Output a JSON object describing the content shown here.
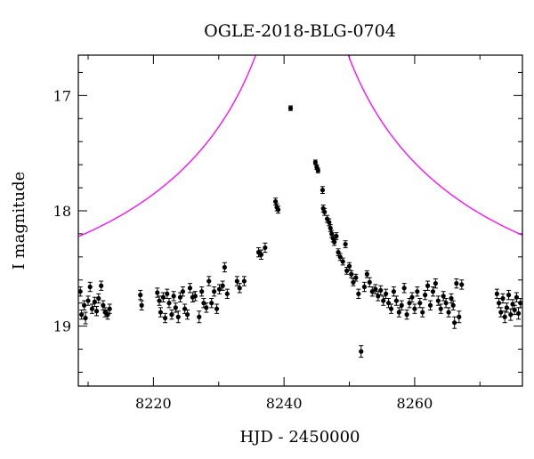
{
  "chart_data": {
    "type": "scatter",
    "title": "OGLE-2018-BLG-0704",
    "xlabel": "HJD - 2450000",
    "ylabel": "I magnitude",
    "xlim": [
      8208.5,
      8276.5
    ],
    "ylim": [
      19.52,
      16.65
    ],
    "y_inverted": true,
    "x_major_ticks": [
      8220,
      8240,
      8260
    ],
    "x_minor_ticks": [
      8210,
      8230,
      8250,
      8270
    ],
    "y_major_ticks": [
      17,
      18,
      19
    ],
    "y_minor_ticks": [
      16.8,
      17.2,
      17.4,
      17.6,
      17.8,
      18.2,
      18.4,
      18.6,
      18.8,
      19.2,
      19.4
    ],
    "grid": false,
    "legend": "none",
    "colors": {
      "points": "#000000",
      "model": "#ff00ff",
      "axes": "#000000"
    },
    "model": {
      "name": "",
      "description": "point-lens magnification curve",
      "baseline_mag": 18.88,
      "t0": 8242.75,
      "u0": 0.005,
      "tE": 55
    },
    "series": [
      {
        "values": [
          {
            "x": 8208.8,
            "y": 18.7,
            "e": 0.04
          },
          {
            "x": 8209.0,
            "y": 18.9,
            "e": 0.04
          },
          {
            "x": 8209.4,
            "y": 18.82,
            "e": 0.04
          },
          {
            "x": 8209.6,
            "y": 18.93,
            "e": 0.05
          },
          {
            "x": 8210.0,
            "y": 18.78,
            "e": 0.04
          },
          {
            "x": 8210.3,
            "y": 18.66,
            "e": 0.04
          },
          {
            "x": 8210.6,
            "y": 18.85,
            "e": 0.04
          },
          {
            "x": 8211.0,
            "y": 18.79,
            "e": 0.04
          },
          {
            "x": 8211.3,
            "y": 18.87,
            "e": 0.04
          },
          {
            "x": 8211.6,
            "y": 18.76,
            "e": 0.04
          },
          {
            "x": 8212.0,
            "y": 18.65,
            "e": 0.04
          },
          {
            "x": 8212.3,
            "y": 18.82,
            "e": 0.04
          },
          {
            "x": 8212.6,
            "y": 18.88,
            "e": 0.04
          },
          {
            "x": 8213.0,
            "y": 18.9,
            "e": 0.04
          },
          {
            "x": 8213.3,
            "y": 18.85,
            "e": 0.04
          },
          {
            "x": 8218.0,
            "y": 18.73,
            "e": 0.04
          },
          {
            "x": 8218.2,
            "y": 18.82,
            "e": 0.04
          },
          {
            "x": 8220.6,
            "y": 18.71,
            "e": 0.04
          },
          {
            "x": 8220.9,
            "y": 18.78,
            "e": 0.04
          },
          {
            "x": 8221.1,
            "y": 18.88,
            "e": 0.04
          },
          {
            "x": 8221.5,
            "y": 18.75,
            "e": 0.04
          },
          {
            "x": 8221.8,
            "y": 18.93,
            "e": 0.04
          },
          {
            "x": 8222.1,
            "y": 18.72,
            "e": 0.04
          },
          {
            "x": 8222.4,
            "y": 18.8,
            "e": 0.04
          },
          {
            "x": 8222.8,
            "y": 18.9,
            "e": 0.04
          },
          {
            "x": 8223.1,
            "y": 18.74,
            "e": 0.04
          },
          {
            "x": 8223.4,
            "y": 18.84,
            "e": 0.04
          },
          {
            "x": 8223.8,
            "y": 18.92,
            "e": 0.05
          },
          {
            "x": 8224.1,
            "y": 18.75,
            "e": 0.04
          },
          {
            "x": 8224.5,
            "y": 18.7,
            "e": 0.04
          },
          {
            "x": 8224.8,
            "y": 18.85,
            "e": 0.04
          },
          {
            "x": 8225.2,
            "y": 18.9,
            "e": 0.04
          },
          {
            "x": 8225.6,
            "y": 18.67,
            "e": 0.04
          },
          {
            "x": 8226.0,
            "y": 18.75,
            "e": 0.04
          },
          {
            "x": 8226.4,
            "y": 18.74,
            "e": 0.04
          },
          {
            "x": 8227.0,
            "y": 18.92,
            "e": 0.05
          },
          {
            "x": 8227.4,
            "y": 18.7,
            "e": 0.04
          },
          {
            "x": 8227.7,
            "y": 18.8,
            "e": 0.04
          },
          {
            "x": 8228.1,
            "y": 18.84,
            "e": 0.04
          },
          {
            "x": 8228.5,
            "y": 18.61,
            "e": 0.04
          },
          {
            "x": 8228.9,
            "y": 18.8,
            "e": 0.04
          },
          {
            "x": 8229.3,
            "y": 18.7,
            "e": 0.04
          },
          {
            "x": 8229.7,
            "y": 18.85,
            "e": 0.04
          },
          {
            "x": 8230.1,
            "y": 18.68,
            "e": 0.04
          },
          {
            "x": 8230.6,
            "y": 18.65,
            "e": 0.04
          },
          {
            "x": 8230.9,
            "y": 18.49,
            "e": 0.04
          },
          {
            "x": 8231.3,
            "y": 18.72,
            "e": 0.04
          },
          {
            "x": 8232.8,
            "y": 18.61,
            "e": 0.04
          },
          {
            "x": 8233.2,
            "y": 18.67,
            "e": 0.04
          },
          {
            "x": 8233.9,
            "y": 18.61,
            "e": 0.04
          },
          {
            "x": 8236.1,
            "y": 18.36,
            "e": 0.04
          },
          {
            "x": 8236.5,
            "y": 18.38,
            "e": 0.04
          },
          {
            "x": 8237.1,
            "y": 18.32,
            "e": 0.04
          },
          {
            "x": 8238.7,
            "y": 17.92,
            "e": 0.03
          },
          {
            "x": 8238.9,
            "y": 17.97,
            "e": 0.03
          },
          {
            "x": 8239.1,
            "y": 17.99,
            "e": 0.03
          },
          {
            "x": 8241.0,
            "y": 17.11,
            "e": 0.02
          },
          {
            "x": 8244.8,
            "y": 17.58,
            "e": 0.02
          },
          {
            "x": 8245.0,
            "y": 17.62,
            "e": 0.02
          },
          {
            "x": 8245.2,
            "y": 17.65,
            "e": 0.02
          },
          {
            "x": 8245.9,
            "y": 17.82,
            "e": 0.03
          },
          {
            "x": 8246.0,
            "y": 17.98,
            "e": 0.03
          },
          {
            "x": 8246.2,
            "y": 18.01,
            "e": 0.03
          },
          {
            "x": 8246.6,
            "y": 18.07,
            "e": 0.03
          },
          {
            "x": 8246.9,
            "y": 18.1,
            "e": 0.03
          },
          {
            "x": 8247.1,
            "y": 18.15,
            "e": 0.03
          },
          {
            "x": 8247.3,
            "y": 18.2,
            "e": 0.03
          },
          {
            "x": 8247.5,
            "y": 18.24,
            "e": 0.03
          },
          {
            "x": 8247.7,
            "y": 18.27,
            "e": 0.03
          },
          {
            "x": 8248.0,
            "y": 18.22,
            "e": 0.03
          },
          {
            "x": 8248.3,
            "y": 18.36,
            "e": 0.03
          },
          {
            "x": 8248.6,
            "y": 18.4,
            "e": 0.03
          },
          {
            "x": 8249.0,
            "y": 18.44,
            "e": 0.03
          },
          {
            "x": 8249.4,
            "y": 18.29,
            "e": 0.03
          },
          {
            "x": 8249.6,
            "y": 18.52,
            "e": 0.03
          },
          {
            "x": 8250.0,
            "y": 18.48,
            "e": 0.03
          },
          {
            "x": 8250.3,
            "y": 18.55,
            "e": 0.03
          },
          {
            "x": 8250.6,
            "y": 18.62,
            "e": 0.03
          },
          {
            "x": 8251.0,
            "y": 18.58,
            "e": 0.03
          },
          {
            "x": 8251.4,
            "y": 18.72,
            "e": 0.04
          },
          {
            "x": 8251.8,
            "y": 19.22,
            "e": 0.05
          },
          {
            "x": 8252.3,
            "y": 18.66,
            "e": 0.04
          },
          {
            "x": 8252.7,
            "y": 18.55,
            "e": 0.03
          },
          {
            "x": 8253.1,
            "y": 18.62,
            "e": 0.04
          },
          {
            "x": 8253.5,
            "y": 18.7,
            "e": 0.04
          },
          {
            "x": 8254.0,
            "y": 18.68,
            "e": 0.04
          },
          {
            "x": 8254.4,
            "y": 18.74,
            "e": 0.04
          },
          {
            "x": 8254.8,
            "y": 18.69,
            "e": 0.04
          },
          {
            "x": 8255.2,
            "y": 18.78,
            "e": 0.04
          },
          {
            "x": 8255.6,
            "y": 18.72,
            "e": 0.04
          },
          {
            "x": 8256.0,
            "y": 18.8,
            "e": 0.04
          },
          {
            "x": 8256.4,
            "y": 18.85,
            "e": 0.04
          },
          {
            "x": 8256.8,
            "y": 18.7,
            "e": 0.04
          },
          {
            "x": 8257.2,
            "y": 18.78,
            "e": 0.04
          },
          {
            "x": 8257.6,
            "y": 18.88,
            "e": 0.04
          },
          {
            "x": 8258.0,
            "y": 18.82,
            "e": 0.04
          },
          {
            "x": 8258.4,
            "y": 18.67,
            "e": 0.04
          },
          {
            "x": 8258.8,
            "y": 18.9,
            "e": 0.04
          },
          {
            "x": 8259.2,
            "y": 18.8,
            "e": 0.04
          },
          {
            "x": 8259.6,
            "y": 18.75,
            "e": 0.04
          },
          {
            "x": 8260.0,
            "y": 18.85,
            "e": 0.04
          },
          {
            "x": 8260.4,
            "y": 18.7,
            "e": 0.04
          },
          {
            "x": 8260.8,
            "y": 18.8,
            "e": 0.04
          },
          {
            "x": 8261.2,
            "y": 18.88,
            "e": 0.04
          },
          {
            "x": 8261.6,
            "y": 18.73,
            "e": 0.04
          },
          {
            "x": 8262.0,
            "y": 18.65,
            "e": 0.04
          },
          {
            "x": 8262.4,
            "y": 18.82,
            "e": 0.04
          },
          {
            "x": 8262.8,
            "y": 18.7,
            "e": 0.04
          },
          {
            "x": 8263.2,
            "y": 18.63,
            "e": 0.04
          },
          {
            "x": 8263.6,
            "y": 18.78,
            "e": 0.04
          },
          {
            "x": 8264.0,
            "y": 18.85,
            "e": 0.04
          },
          {
            "x": 8264.4,
            "y": 18.74,
            "e": 0.04
          },
          {
            "x": 8264.8,
            "y": 18.8,
            "e": 0.04
          },
          {
            "x": 8265.2,
            "y": 18.88,
            "e": 0.04
          },
          {
            "x": 8265.6,
            "y": 18.76,
            "e": 0.04
          },
          {
            "x": 8265.9,
            "y": 18.82,
            "e": 0.04
          },
          {
            "x": 8266.1,
            "y": 18.97,
            "e": 0.05
          },
          {
            "x": 8266.4,
            "y": 18.63,
            "e": 0.04
          },
          {
            "x": 8266.8,
            "y": 18.92,
            "e": 0.05
          },
          {
            "x": 8267.2,
            "y": 18.64,
            "e": 0.04
          },
          {
            "x": 8272.6,
            "y": 18.72,
            "e": 0.04
          },
          {
            "x": 8272.9,
            "y": 18.8,
            "e": 0.04
          },
          {
            "x": 8273.2,
            "y": 18.88,
            "e": 0.04
          },
          {
            "x": 8273.5,
            "y": 18.76,
            "e": 0.04
          },
          {
            "x": 8273.8,
            "y": 18.92,
            "e": 0.05
          },
          {
            "x": 8274.1,
            "y": 18.84,
            "e": 0.04
          },
          {
            "x": 8274.4,
            "y": 18.73,
            "e": 0.04
          },
          {
            "x": 8274.7,
            "y": 18.9,
            "e": 0.05
          },
          {
            "x": 8275.0,
            "y": 18.81,
            "e": 0.04
          },
          {
            "x": 8275.3,
            "y": 18.86,
            "e": 0.04
          },
          {
            "x": 8275.6,
            "y": 18.75,
            "e": 0.04
          },
          {
            "x": 8275.9,
            "y": 18.89,
            "e": 0.05
          },
          {
            "x": 8276.2,
            "y": 18.8,
            "e": 0.04
          }
        ]
      }
    ]
  }
}
